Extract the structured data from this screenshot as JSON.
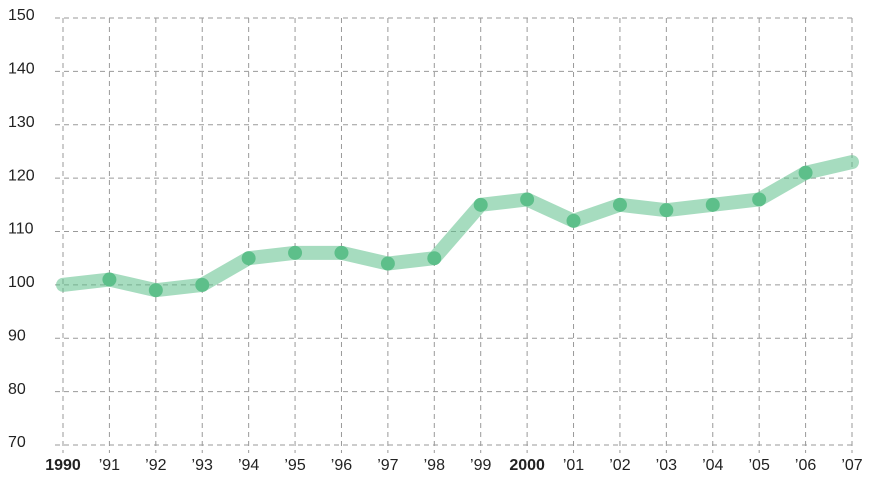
{
  "chart_data": {
    "type": "line",
    "categories": [
      "1990",
      "’91",
      "’92",
      "’93",
      "’94",
      "’95",
      "’96",
      "’97",
      "’98",
      "’99",
      "2000",
      "’01",
      "’02",
      "’03",
      "’04",
      "’05",
      "’06",
      "’07"
    ],
    "series": [
      {
        "name": null,
        "color": "#5dbf8a",
        "values": [
          100,
          101,
          99,
          100,
          105,
          106,
          106,
          104,
          105,
          115,
          116,
          112,
          115,
          114,
          115,
          116,
          121,
          123
        ]
      }
    ],
    "ylim": [
      70,
      150
    ],
    "yticks": [
      70,
      80,
      90,
      100,
      110,
      120,
      130,
      140,
      150
    ],
    "grid": true
  }
}
